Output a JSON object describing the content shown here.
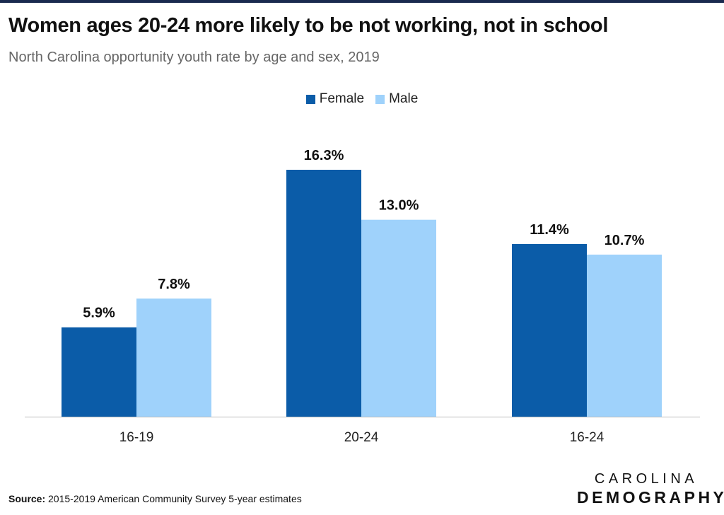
{
  "header": {
    "title": "Women ages 20-24 more likely to be not working, not in school",
    "subtitle": "North Carolina opportunity youth rate by age and sex, 2019"
  },
  "colors": {
    "female": "#0b5ca8",
    "male": "#9fd2fb",
    "axis": "#bbbbbb",
    "top_rule": "#1a2a4f"
  },
  "chart_data": {
    "type": "bar",
    "title": "Women ages 20-24 more likely to be not working, not in school",
    "subtitle": "North Carolina opportunity youth rate by age and sex, 2019",
    "categories": [
      "16-19",
      "20-24",
      "16-24"
    ],
    "series": [
      {
        "name": "Female",
        "values": [
          5.9,
          16.3,
          11.4
        ],
        "labels": [
          "5.9%",
          "16.3%",
          "11.4%"
        ]
      },
      {
        "name": "Male",
        "values": [
          7.8,
          13.0,
          10.7
        ],
        "labels": [
          "7.8%",
          "13.0%",
          "10.7%"
        ]
      }
    ],
    "unit": "%",
    "ylim": [
      0,
      16.3
    ],
    "grid": false,
    "legend": "top-center"
  },
  "footer": {
    "source_label": "Source:",
    "source_text": "2015-2019 American Community Survey 5-year estimates",
    "logo_line1": "CAROLINA",
    "logo_line2": "DEMOGRAPHY"
  }
}
